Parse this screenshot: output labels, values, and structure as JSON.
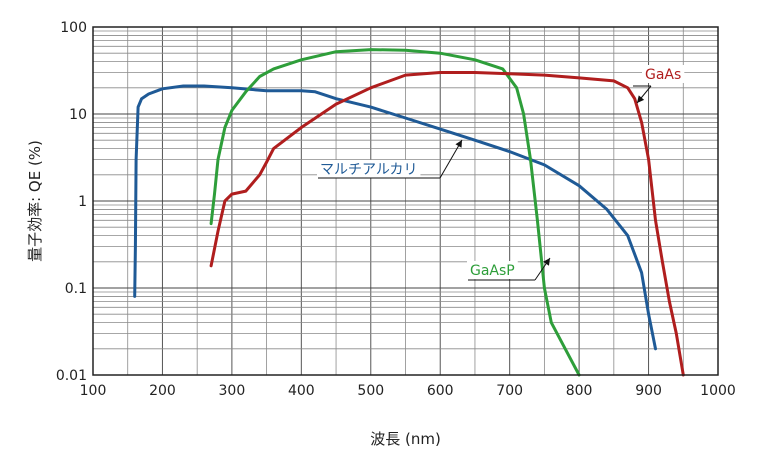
{
  "chart_data": {
    "type": "line",
    "title": "",
    "xlabel": "波長 (nm)",
    "ylabel": "量子効率: QE (%)",
    "xlim": [
      100,
      1000
    ],
    "ylim": [
      0.01,
      100
    ],
    "yscale": "log",
    "grid": true,
    "x_ticks": [
      "100",
      "200",
      "300",
      "400",
      "500",
      "600",
      "700",
      "800",
      "900",
      "1000"
    ],
    "y_ticks": [
      "0.01",
      "0.1",
      "1",
      "10",
      "100"
    ],
    "series": [
      {
        "name": "マルチアルカリ",
        "color": "#1f5a96",
        "points": [
          [
            160,
            0.08
          ],
          [
            161,
            0.3
          ],
          [
            162,
            3
          ],
          [
            165,
            12
          ],
          [
            170,
            15
          ],
          [
            180,
            17
          ],
          [
            200,
            19.5
          ],
          [
            230,
            21
          ],
          [
            260,
            21
          ],
          [
            300,
            20
          ],
          [
            350,
            18.5
          ],
          [
            400,
            18.5
          ],
          [
            420,
            18
          ],
          [
            450,
            15
          ],
          [
            500,
            12
          ],
          [
            550,
            9
          ],
          [
            600,
            6.7
          ],
          [
            650,
            5
          ],
          [
            700,
            3.7
          ],
          [
            750,
            2.6
          ],
          [
            800,
            1.5
          ],
          [
            840,
            0.8
          ],
          [
            870,
            0.4
          ],
          [
            890,
            0.15
          ],
          [
            900,
            0.05
          ],
          [
            910,
            0.02
          ]
        ]
      },
      {
        "name": "GaAsP",
        "color": "#2e9e3a",
        "points": [
          [
            270,
            0.55
          ],
          [
            275,
            1.2
          ],
          [
            280,
            3
          ],
          [
            290,
            7
          ],
          [
            300,
            11
          ],
          [
            320,
            18
          ],
          [
            340,
            27
          ],
          [
            360,
            33
          ],
          [
            400,
            42
          ],
          [
            450,
            52
          ],
          [
            500,
            55
          ],
          [
            550,
            54
          ],
          [
            600,
            50
          ],
          [
            650,
            42
          ],
          [
            690,
            33
          ],
          [
            710,
            20
          ],
          [
            720,
            10
          ],
          [
            730,
            3
          ],
          [
            740,
            0.6
          ],
          [
            750,
            0.1
          ],
          [
            760,
            0.04
          ],
          [
            780,
            0.02
          ],
          [
            800,
            0.01
          ]
        ]
      },
      {
        "name": "GaAs",
        "color": "#b01e1e",
        "points": [
          [
            270,
            0.18
          ],
          [
            280,
            0.45
          ],
          [
            290,
            1
          ],
          [
            300,
            1.2
          ],
          [
            320,
            1.3
          ],
          [
            340,
            2
          ],
          [
            350,
            2.8
          ],
          [
            360,
            4
          ],
          [
            400,
            7
          ],
          [
            450,
            13
          ],
          [
            500,
            20
          ],
          [
            550,
            28
          ],
          [
            600,
            30
          ],
          [
            650,
            30
          ],
          [
            700,
            29
          ],
          [
            750,
            28
          ],
          [
            800,
            26
          ],
          [
            850,
            24
          ],
          [
            870,
            20
          ],
          [
            880,
            15
          ],
          [
            890,
            8
          ],
          [
            900,
            3
          ],
          [
            910,
            0.6
          ],
          [
            920,
            0.2
          ],
          [
            930,
            0.07
          ],
          [
            940,
            0.03
          ],
          [
            950,
            0.01
          ]
        ]
      }
    ],
    "annotations": [
      {
        "text": "GaAs",
        "series": "GaAs",
        "color": "#b01e1e"
      },
      {
        "text": "マルチアルカリ",
        "series": "マルチアルカリ",
        "color": "#1f5a96"
      },
      {
        "text": "GaAsP",
        "series": "GaAsP",
        "color": "#2e9e3a"
      }
    ]
  }
}
